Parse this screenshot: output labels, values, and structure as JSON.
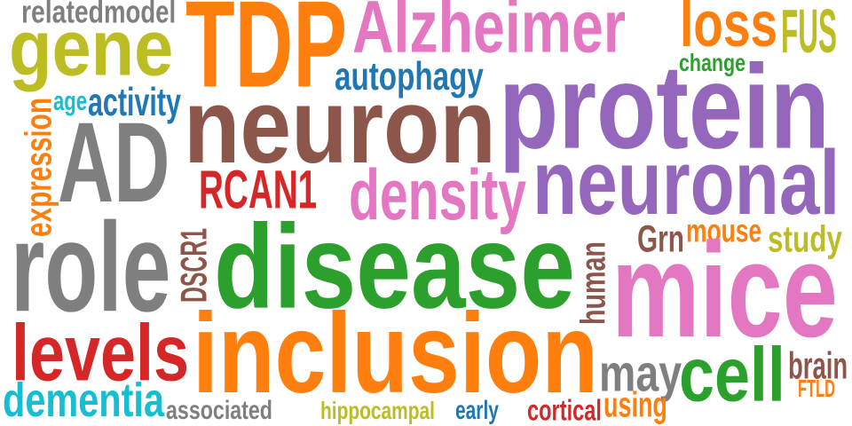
{
  "words": [
    {
      "text": "related",
      "color": "#7f7f7f"
    },
    {
      "text": "model",
      "color": "#7f7f7f"
    },
    {
      "text": "TDP",
      "color": "#ff7f0e"
    },
    {
      "text": "Alzheimer",
      "color": "#e377c2"
    },
    {
      "text": "loss",
      "color": "#ff7f0e"
    },
    {
      "text": "FUS",
      "color": "#bcbd22"
    },
    {
      "text": "gene",
      "color": "#bcbd22"
    },
    {
      "text": "change",
      "color": "#2ca02c"
    },
    {
      "text": "autophagy",
      "color": "#1f77b4"
    },
    {
      "text": "age",
      "color": "#17becf"
    },
    {
      "text": "activity",
      "color": "#1f77b4"
    },
    {
      "text": "protein",
      "color": "#9467bd"
    },
    {
      "text": "neuron",
      "color": "#8c564b"
    },
    {
      "text": "expression",
      "color": "#ff7f0e"
    },
    {
      "text": "AD",
      "color": "#7f7f7f"
    },
    {
      "text": "neuronal",
      "color": "#9467bd"
    },
    {
      "text": "RCAN1",
      "color": "#d62728"
    },
    {
      "text": "density",
      "color": "#e377c2"
    },
    {
      "text": "DSCR1",
      "color": "#8c564b"
    },
    {
      "text": "role",
      "color": "#7f7f7f"
    },
    {
      "text": "disease",
      "color": "#2ca02c"
    },
    {
      "text": "Grn",
      "color": "#8c564b"
    },
    {
      "text": "mouse",
      "color": "#ff7f0e"
    },
    {
      "text": "study",
      "color": "#bcbd22"
    },
    {
      "text": "human",
      "color": "#8c564b"
    },
    {
      "text": "mice",
      "color": "#e377c2"
    },
    {
      "text": "levels",
      "color": "#d62728"
    },
    {
      "text": "inclusion",
      "color": "#ff7f0e"
    },
    {
      "text": "may",
      "color": "#7f7f7f"
    },
    {
      "text": "cell",
      "color": "#2ca02c"
    },
    {
      "text": "brain",
      "color": "#8c564b"
    },
    {
      "text": "FTLD",
      "color": "#ff7f0e"
    },
    {
      "text": "dementia",
      "color": "#17becf"
    },
    {
      "text": "associated",
      "color": "#7f7f7f"
    },
    {
      "text": "hippocampal",
      "color": "#bcbd22"
    },
    {
      "text": "early",
      "color": "#1f77b4"
    },
    {
      "text": "cortical",
      "color": "#d62728"
    },
    {
      "text": "using",
      "color": "#ff7f0e"
    }
  ]
}
